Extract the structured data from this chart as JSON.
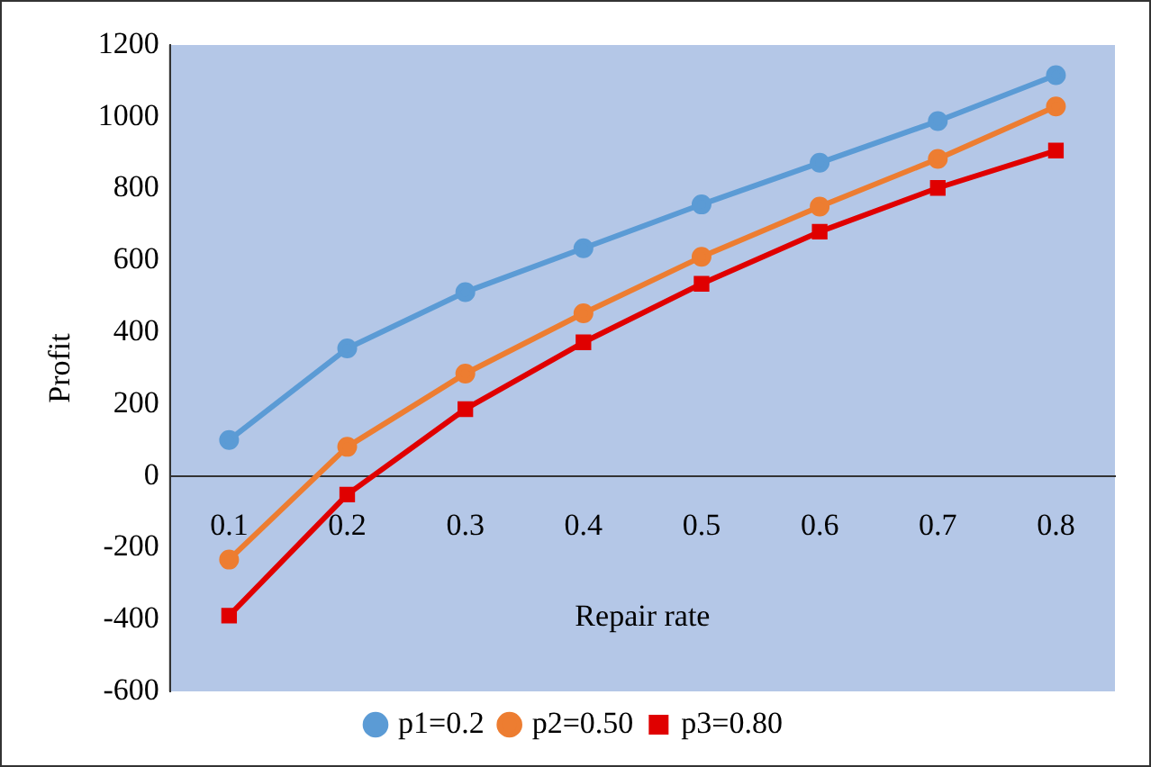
{
  "chart_data": {
    "type": "line",
    "xlabel": "Repair rate",
    "ylabel": "Profit",
    "categories": [
      "0.1",
      "0.2",
      "0.3",
      "0.4",
      "0.5",
      "0.6",
      "0.7",
      "0.8"
    ],
    "ylim": [
      -600,
      1200
    ],
    "yticks": [
      -600,
      -400,
      -200,
      0,
      200,
      400,
      600,
      800,
      1000,
      1200
    ],
    "legend": "bottom",
    "grid": false,
    "series": [
      {
        "name": "p1=0.2",
        "color": "#5b9bd5",
        "marker": "circle",
        "values": [
          100,
          355,
          512,
          634,
          756,
          872,
          988,
          1116
        ]
      },
      {
        "name": "p2=0.50",
        "color": "#ed7d31",
        "marker": "circle",
        "values": [
          -233,
          81,
          285,
          453,
          610,
          750,
          883,
          1029
        ]
      },
      {
        "name": "p3=0.80",
        "color": "#e00000",
        "marker": "square",
        "values": [
          -389,
          -52,
          186,
          372,
          535,
          680,
          802,
          906
        ]
      }
    ]
  }
}
